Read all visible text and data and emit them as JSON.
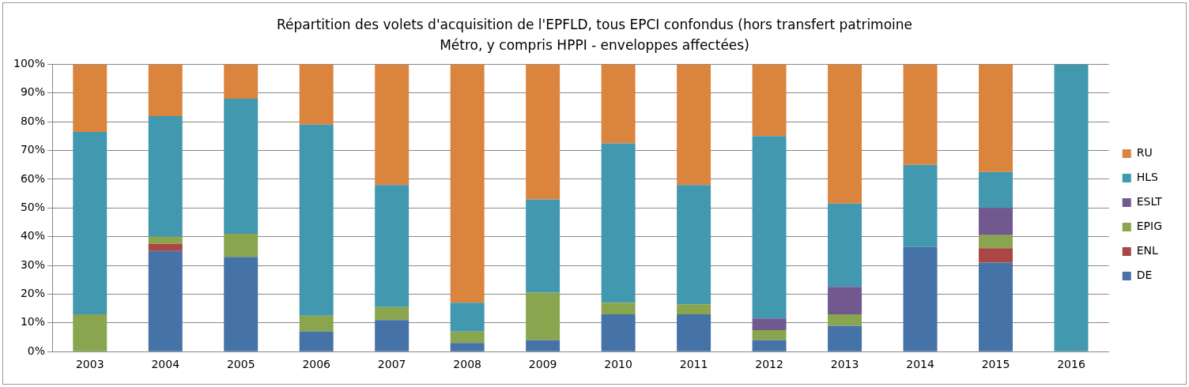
{
  "chart_data": {
    "type": "bar",
    "stacked": true,
    "title": "Répartition des volets d'acquisition de l'EPFLD, tous EPCI confondus (hors transfert patrimoine Métro, y compris HPPI - enveloppes affectées)",
    "categories": [
      "2003",
      "2004",
      "2005",
      "2006",
      "2007",
      "2008",
      "2009",
      "2010",
      "2011",
      "2012",
      "2013",
      "2014",
      "2015",
      "2016"
    ],
    "series": [
      {
        "name": "DE",
        "color": "#4572a7",
        "values": [
          0,
          35,
          33,
          7,
          11,
          3,
          4,
          13,
          13,
          4,
          9,
          36.5,
          31,
          0
        ]
      },
      {
        "name": "ENL",
        "color": "#aa4643",
        "values": [
          0,
          2.5,
          0,
          0,
          0,
          0,
          0,
          0,
          0,
          0,
          0,
          0,
          5,
          0
        ]
      },
      {
        "name": "EPIG",
        "color": "#89a54e",
        "values": [
          13,
          2.5,
          8,
          5.5,
          4.5,
          4,
          16.5,
          4,
          3.5,
          3.5,
          4,
          0,
          4.5,
          0
        ]
      },
      {
        "name": "ESLT",
        "color": "#71588f",
        "values": [
          0,
          0,
          0,
          0,
          0,
          0,
          0,
          0,
          0,
          4,
          9.5,
          0,
          9.5,
          0
        ]
      },
      {
        "name": "HLS",
        "color": "#4198af",
        "values": [
          63.5,
          42,
          47,
          66.5,
          42.5,
          10,
          32.5,
          55.5,
          41.5,
          63.5,
          29,
          28.5,
          12.5,
          100
        ]
      },
      {
        "name": "RU",
        "color": "#db843d",
        "values": [
          23.5,
          18,
          12,
          21,
          42,
          83,
          47,
          27.5,
          42,
          25,
          48.5,
          35,
          37.5,
          0
        ]
      }
    ],
    "ylim": [
      0,
      100
    ],
    "yticks": [
      {
        "value": 0,
        "label": "0%"
      },
      {
        "value": 10,
        "label": "10%"
      },
      {
        "value": 20,
        "label": "20%"
      },
      {
        "value": 30,
        "label": "30%"
      },
      {
        "value": 40,
        "label": "40%"
      },
      {
        "value": 50,
        "label": "50%"
      },
      {
        "value": 60,
        "label": "60%"
      },
      {
        "value": 70,
        "label": "70%"
      },
      {
        "value": 80,
        "label": "80%"
      },
      {
        "value": 90,
        "label": "90%"
      },
      {
        "value": 100,
        "label": "100%"
      }
    ],
    "grid": "y",
    "legend": "right"
  }
}
